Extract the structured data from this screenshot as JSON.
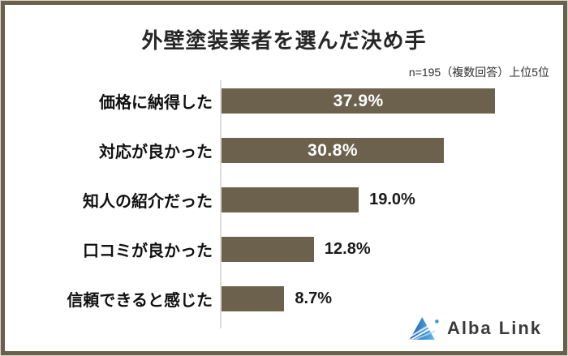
{
  "header": {
    "title": "外壁塗装業者を選んだ決め手",
    "note": "n=195（複数回答）上位5位"
  },
  "chart_data": {
    "type": "bar",
    "orientation": "horizontal",
    "title": "外壁塗装業者を選んだ決め手",
    "note": "n=195（複数回答）上位5位",
    "sample_size": 195,
    "categories": [
      "価格に納得した",
      "対応が良かった",
      "知人の紹介だった",
      "口コミが良かった",
      "信頼できると感じた"
    ],
    "values": [
      37.9,
      30.8,
      19.0,
      12.8,
      8.7
    ],
    "value_labels": [
      "37.9%",
      "30.8%",
      "19.0%",
      "12.8%",
      "8.7%"
    ],
    "value_label_placement": [
      "inside",
      "inside",
      "outside",
      "outside",
      "outside"
    ],
    "xlim": [
      0,
      43
    ],
    "grid": false,
    "legend": "none",
    "bar_color": "#6B614C",
    "axis_line_color": "#DCDCDC",
    "frame_border_color": "#6B6049"
  },
  "footer": {
    "brand": "Alba Link",
    "logo_icon": "alba-link-triangle",
    "logo_colors": {
      "dark_blue": "#1B5FAE",
      "light_blue": "#66B8E8",
      "dot_blue": "#2F9AD6"
    }
  }
}
